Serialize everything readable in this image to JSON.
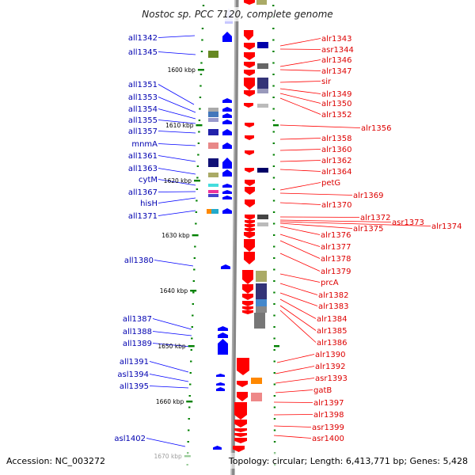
{
  "header": {
    "title": "Nostoc sp. PCC 7120, complete genome"
  },
  "footer": {
    "accession": "Accession: NC_003272",
    "topology": "Topology: circular; Length: 6,413,771 bp; Genes: 5,428"
  },
  "colors": {
    "reverse_strand": "#0000ff",
    "forward_strand": "#ff0000",
    "backbone": "#888888",
    "tick": "#008000",
    "label_reverse": "#0000b0",
    "label_forward": "#dd0000"
  },
  "scale": {
    "kbp_labels": [
      "1600 kbp",
      "1610 kbp",
      "1620 kbp",
      "1630 kbp",
      "1640 kbp",
      "1650 kbp",
      "1660 kbp",
      "1670 kbp"
    ]
  },
  "reverse_strand_genes": [
    {
      "label": "all1342"
    },
    {
      "label": "all1345"
    },
    {
      "label": "all1351"
    },
    {
      "label": "all1353"
    },
    {
      "label": "all1354"
    },
    {
      "label": "all1355"
    },
    {
      "label": "all1357"
    },
    {
      "label": "mnmA"
    },
    {
      "label": "all1361"
    },
    {
      "label": "all1363"
    },
    {
      "label": "cytM"
    },
    {
      "label": "all1367"
    },
    {
      "label": "hisH"
    },
    {
      "label": "all1371"
    },
    {
      "label": "all1380"
    },
    {
      "label": "all1387"
    },
    {
      "label": "all1388"
    },
    {
      "label": "all1389"
    },
    {
      "label": "all1391"
    },
    {
      "label": "asl1394"
    },
    {
      "label": "all1395"
    },
    {
      "label": "asl1402"
    }
  ],
  "forward_strand_genes": [
    {
      "label": "alr1343"
    },
    {
      "label": "asr1344"
    },
    {
      "label": "alr1346"
    },
    {
      "label": "alr1347"
    },
    {
      "label": "sir"
    },
    {
      "label": "alr1349"
    },
    {
      "label": "alr1350"
    },
    {
      "label": "alr1352"
    },
    {
      "label": "alr1356"
    },
    {
      "label": "alr1358"
    },
    {
      "label": "alr1360"
    },
    {
      "label": "alr1362"
    },
    {
      "label": "alr1364"
    },
    {
      "label": "petG"
    },
    {
      "label": "alr1369"
    },
    {
      "label": "alr1370"
    },
    {
      "label": "alr1372"
    },
    {
      "label": "asr1373"
    },
    {
      "label": "alr1374"
    },
    {
      "label": "alr1375"
    },
    {
      "label": "alr1376"
    },
    {
      "label": "alr1377"
    },
    {
      "label": "alr1378"
    },
    {
      "label": "alr1379"
    },
    {
      "label": "prcA"
    },
    {
      "label": "alr1382"
    },
    {
      "label": "alr1383"
    },
    {
      "label": "alr1384"
    },
    {
      "label": "alr1385"
    },
    {
      "label": "alr1386"
    },
    {
      "label": "alr1390"
    },
    {
      "label": "alr1392"
    },
    {
      "label": "asr1393"
    },
    {
      "label": "gatB"
    },
    {
      "label": "alr1397"
    },
    {
      "label": "alr1398"
    },
    {
      "label": "asr1399"
    },
    {
      "label": "asr1400"
    }
  ]
}
